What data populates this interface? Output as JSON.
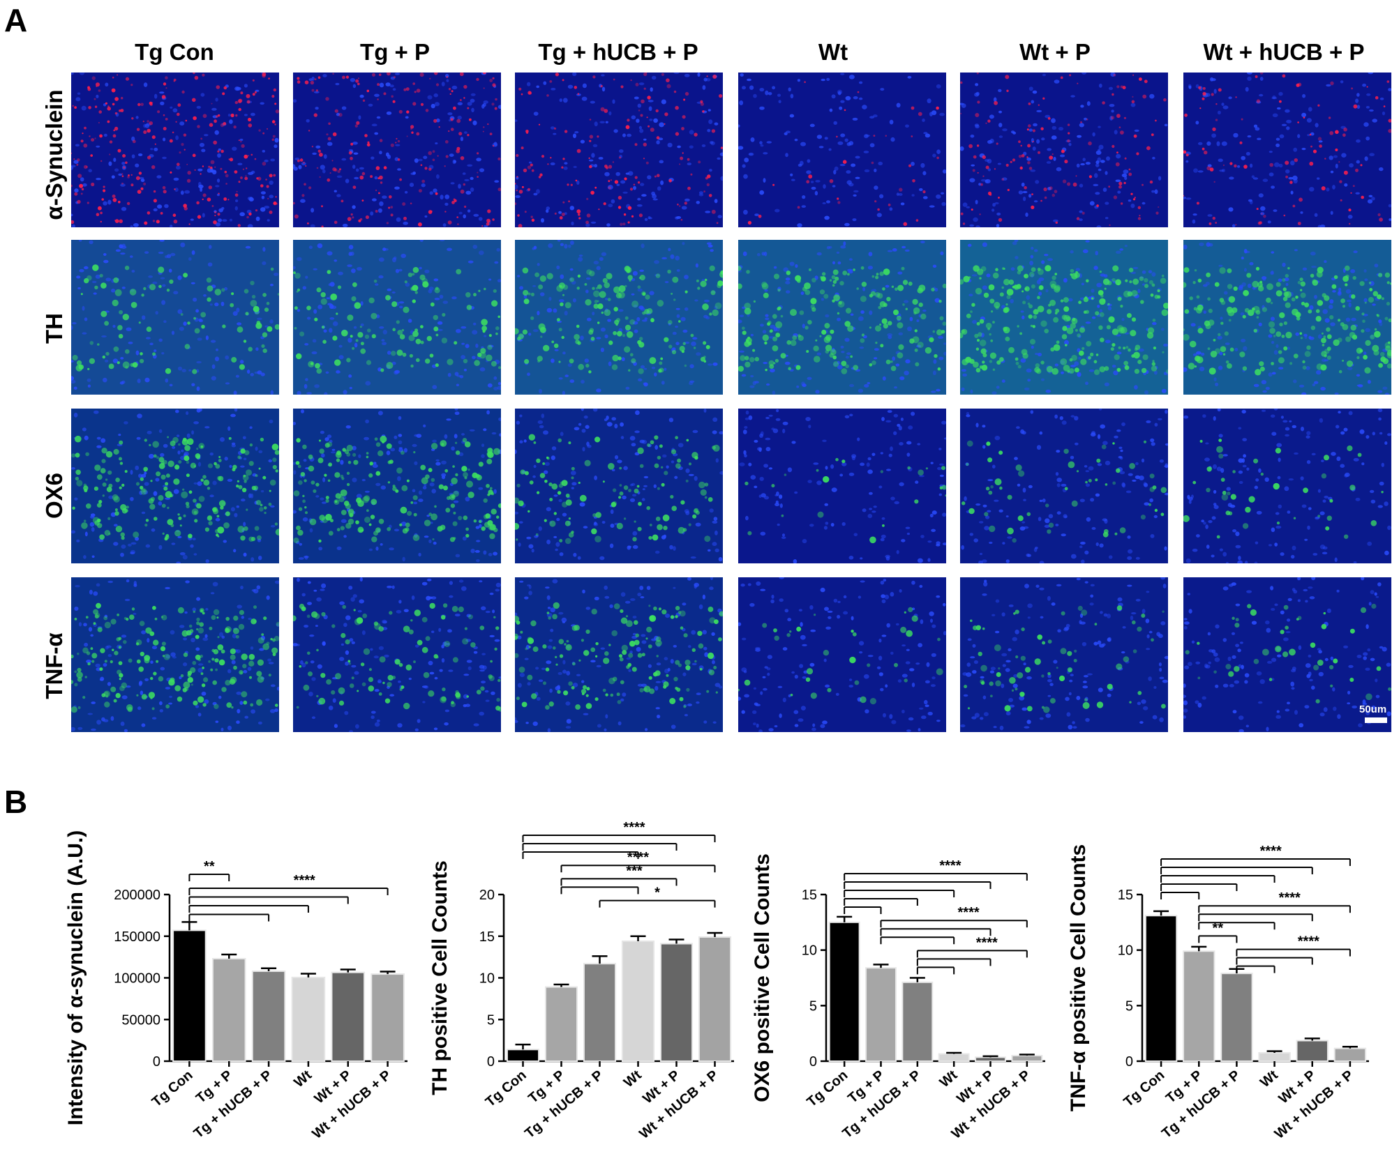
{
  "panels": {
    "a": "A",
    "b": "B"
  },
  "columns": [
    "Tg Con",
    "Tg + P",
    "Tg + hUCB + P",
    "Wt",
    "Wt + P",
    "Wt + hUCB + P"
  ],
  "rows": [
    "α-Synuclein",
    "TH",
    "OX6",
    "TNF-α"
  ],
  "scale_bar": "50um",
  "colors": {
    "nucleus_blue": "#1530b8",
    "alpha_synuclein_red": "#ff1f4c",
    "marker_green": "#3de060"
  },
  "chart_data": [
    {
      "type": "bar",
      "categories": [
        "Tg Con",
        "Tg + P",
        "Tg + hUCB + P",
        "Wt",
        "Wt + P",
        "Wt + hUCB + P"
      ],
      "values": [
        157000,
        123000,
        108000,
        100500,
        106500,
        104500
      ],
      "errors": [
        10000,
        5000,
        3500,
        4500,
        3500,
        3000
      ],
      "ylabel": "Intensity of α-synuclein (A.U.)",
      "ylim": [
        0,
        200000
      ],
      "yticks": [
        0,
        50000,
        100000,
        150000,
        200000
      ],
      "bar_colors": [
        "#000000",
        "#a6a6a6",
        "#808080",
        "#d6d6d6",
        "#666666",
        "#a3a3a3"
      ],
      "brackets": [
        {
          "from": 0,
          "to": [
            1
          ],
          "label": "**"
        },
        {
          "from": 0,
          "to": [
            2,
            3,
            4,
            5
          ],
          "label": "****"
        }
      ]
    },
    {
      "type": "bar",
      "categories": [
        "Tg Con",
        "Tg + P",
        "Tg + hUCB + P",
        "Wt",
        "Wt + P",
        "Wt + hUCB + P"
      ],
      "values": [
        1.4,
        8.9,
        11.7,
        14.4,
        14.1,
        14.9
      ],
      "errors": [
        0.6,
        0.3,
        0.9,
        0.6,
        0.5,
        0.5
      ],
      "ylabel": "TH positive Cell Counts",
      "ylim": [
        0,
        20
      ],
      "yticks": [
        0,
        5,
        10,
        15,
        20
      ],
      "bar_colors": [
        "#000000",
        "#a6a6a6",
        "#808080",
        "#d6d6d6",
        "#666666",
        "#a3a3a3"
      ],
      "brackets": [
        {
          "from": 0,
          "to": [
            3,
            4,
            5
          ],
          "label": "****"
        },
        {
          "from": 1,
          "to": [
            5
          ],
          "label": "****"
        },
        {
          "from": 1,
          "to": [
            3,
            4
          ],
          "label": "***"
        },
        {
          "from": 2,
          "to": [
            5
          ],
          "label": "*"
        }
      ]
    },
    {
      "type": "bar",
      "categories": [
        "Tg Con",
        "Tg + P",
        "Tg + hUCB + P",
        "Wt",
        "Wt + P",
        "Wt + hUCB + P"
      ],
      "values": [
        12.5,
        8.4,
        7.1,
        0.65,
        0.35,
        0.5
      ],
      "errors": [
        0.5,
        0.3,
        0.4,
        0.1,
        0.1,
        0.1
      ],
      "ylabel": "OX6 positive Cell Counts",
      "ylim": [
        0,
        15
      ],
      "yticks": [
        0,
        5,
        10,
        15
      ],
      "bar_colors": [
        "#000000",
        "#a6a6a6",
        "#808080",
        "#d6d6d6",
        "#666666",
        "#a3a3a3"
      ],
      "brackets": [
        {
          "from": 0,
          "to": [
            1,
            2,
            3,
            4,
            5
          ],
          "label": "****"
        },
        {
          "from": 1,
          "to": [
            3,
            4,
            5
          ],
          "label": "****"
        },
        {
          "from": 2,
          "to": [
            3,
            4,
            5
          ],
          "label": "****"
        }
      ]
    },
    {
      "type": "bar",
      "categories": [
        "Tg Con",
        "Tg + P",
        "Tg + hUCB + P",
        "Wt",
        "Wt + P",
        "Wt + hUCB + P"
      ],
      "values": [
        13.1,
        9.9,
        7.9,
        0.75,
        1.85,
        1.15
      ],
      "errors": [
        0.4,
        0.4,
        0.4,
        0.15,
        0.2,
        0.15
      ],
      "ylabel": "TNF-α positive Cell Counts",
      "ylim": [
        0,
        15
      ],
      "yticks": [
        0,
        5,
        10,
        15
      ],
      "bar_colors": [
        "#000000",
        "#a6a6a6",
        "#808080",
        "#d6d6d6",
        "#666666",
        "#a3a3a3"
      ],
      "brackets": [
        {
          "from": 0,
          "to": [
            1,
            2,
            3,
            4,
            5
          ],
          "label": "****"
        },
        {
          "from": 1,
          "to": [
            3,
            4,
            5
          ],
          "label": "****"
        },
        {
          "from": 1,
          "to": [
            2
          ],
          "label": "**"
        },
        {
          "from": 2,
          "to": [
            3,
            4,
            5
          ],
          "label": "****"
        }
      ]
    }
  ]
}
